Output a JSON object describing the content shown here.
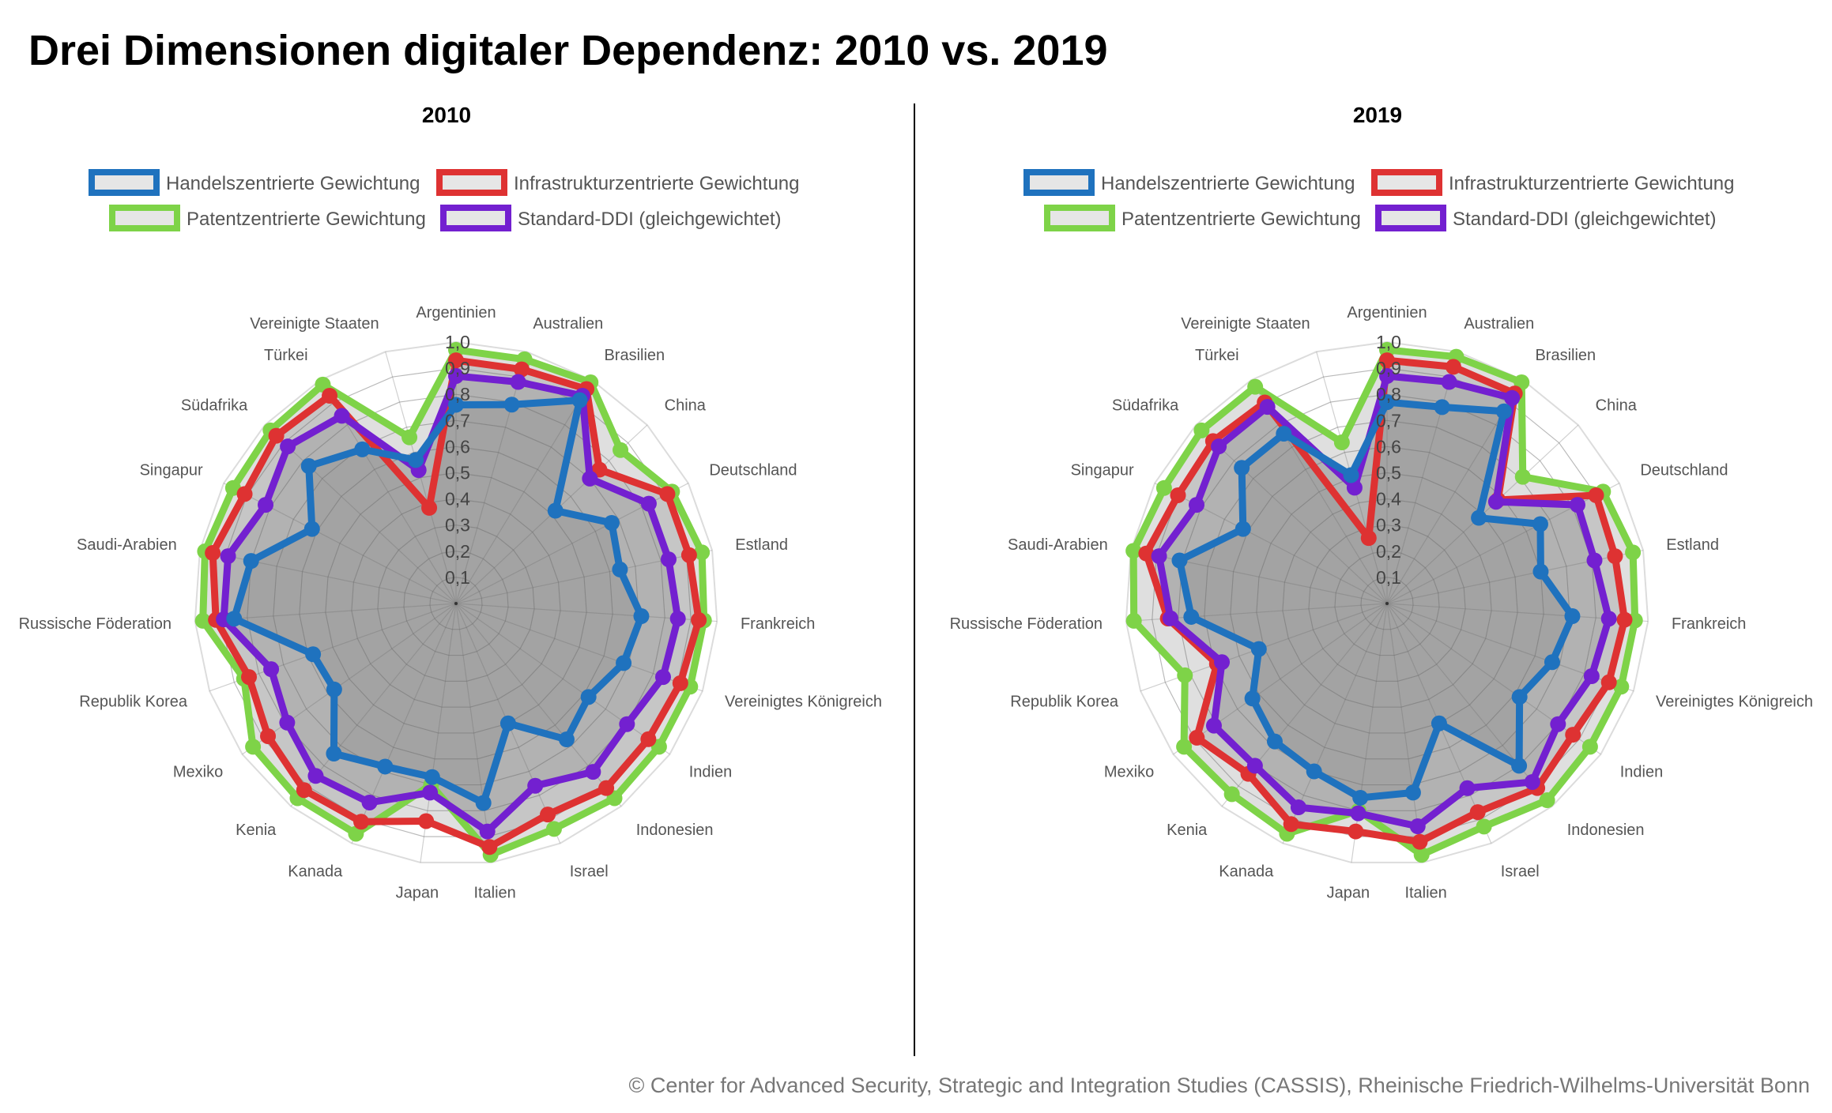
{
  "title": "Drei Dimensionen digitaler Dependenz: 2010 vs. 2019",
  "footer": "© Center for Advanced Security, Strategic and Integration Studies (CASSIS), Rheinische Friedrich-Wilhelms-Universität Bonn",
  "chart_data": [
    {
      "type": "radar",
      "title": "2010",
      "rlim": [
        0,
        1
      ],
      "radial_ticks": [
        "0,1",
        "0,2",
        "0,3",
        "0,4",
        "0,5",
        "0,6",
        "0,7",
        "0,8",
        "0,9",
        "1,0"
      ],
      "categories": [
        "Argentinien",
        "Australien",
        "Brasilien",
        "China",
        "Deutschland",
        "Estland",
        "Frankreich",
        "Vereinigtes Königreich",
        "Indien",
        "Indonesien",
        "Israel",
        "Italien",
        "Japan",
        "Kanada",
        "Kenia",
        "Mexiko",
        "Republik Korea",
        "Russische Föderation",
        "Saudi-Arabien",
        "Singapur",
        "Südafrika",
        "Türkei",
        "Vereinigte Staaten"
      ],
      "legend": "top",
      "series": [
        {
          "name": "Patentzentrierte Gewichtung",
          "color": "#7ed348",
          "values": [
            0.97,
            0.97,
            0.99,
            0.86,
            0.93,
            0.96,
            0.95,
            0.95,
            0.95,
            0.96,
            0.94,
            0.97,
            0.7,
            0.96,
            0.96,
            0.95,
            0.86,
            0.97,
            0.98,
            0.96,
            0.97,
            0.98,
            0.66
          ]
        },
        {
          "name": "Infrastrukturzentrierte Gewichtung",
          "color": "#de3232",
          "values": [
            0.93,
            0.93,
            0.96,
            0.75,
            0.91,
            0.91,
            0.93,
            0.91,
            0.9,
            0.91,
            0.88,
            0.94,
            0.84,
            0.91,
            0.92,
            0.88,
            0.84,
            0.92,
            0.95,
            0.91,
            0.94,
            0.93,
            0.38
          ]
        },
        {
          "name": "Standard-DDI (gleichgewichtet)",
          "color": "#7320d0",
          "values": [
            0.87,
            0.88,
            0.93,
            0.7,
            0.83,
            0.83,
            0.85,
            0.84,
            0.8,
            0.83,
            0.76,
            0.88,
            0.73,
            0.83,
            0.85,
            0.79,
            0.75,
            0.89,
            0.89,
            0.82,
            0.88,
            0.84,
            0.53
          ]
        },
        {
          "name": "Handelszentrierte Gewichtung",
          "color": "#1f72be",
          "values": [
            0.76,
            0.79,
            0.91,
            0.52,
            0.67,
            0.64,
            0.71,
            0.68,
            0.62,
            0.67,
            0.5,
            0.77,
            0.67,
            0.68,
            0.74,
            0.57,
            0.58,
            0.85,
            0.8,
            0.62,
            0.77,
            0.69,
            0.57
          ]
        }
      ]
    },
    {
      "type": "radar",
      "title": "2019",
      "rlim": [
        0,
        1
      ],
      "radial_ticks": [
        "0,1",
        "0,2",
        "0,3",
        "0,4",
        "0,5",
        "0,6",
        "0,7",
        "0,8",
        "0,9",
        "1,0"
      ],
      "categories": [
        "Argentinien",
        "Australien",
        "Brasilien",
        "China",
        "Deutschland",
        "Estland",
        "Frankreich",
        "Vereinigtes Königreich",
        "Indien",
        "Indonesien",
        "Israel",
        "Italien",
        "Japan",
        "Kanada",
        "Kenia",
        "Mexiko",
        "Republik Korea",
        "Russische Föderation",
        "Saudi-Arabien",
        "Singapur",
        "Südafrika",
        "Türkei",
        "Vereinigte Staaten"
      ],
      "legend": "top",
      "series": [
        {
          "name": "Patentzentrierte Gewichtung",
          "color": "#7ed348",
          "values": [
            0.97,
            0.98,
            0.99,
            0.71,
            0.93,
            0.96,
            0.95,
            0.95,
            0.95,
            0.97,
            0.93,
            0.97,
            0.8,
            0.96,
            0.94,
            0.95,
            0.82,
            0.97,
            0.99,
            0.96,
            0.97,
            0.97,
            0.64
          ]
        },
        {
          "name": "Infrastrukturzentrierte Gewichtung",
          "color": "#de3232",
          "values": [
            0.93,
            0.94,
            0.94,
            0.58,
            0.9,
            0.89,
            0.91,
            0.9,
            0.87,
            0.91,
            0.87,
            0.92,
            0.88,
            0.92,
            0.84,
            0.89,
            0.69,
            0.84,
            0.94,
            0.9,
            0.91,
            0.9,
            0.26
          ]
        },
        {
          "name": "Standard-DDI (gleichgewichtet)",
          "color": "#7320d0",
          "values": [
            0.87,
            0.88,
            0.92,
            0.57,
            0.82,
            0.81,
            0.85,
            0.83,
            0.8,
            0.88,
            0.77,
            0.86,
            0.81,
            0.85,
            0.8,
            0.81,
            0.67,
            0.83,
            0.89,
            0.82,
            0.88,
            0.88,
            0.46
          ]
        },
        {
          "name": "Handelszentrierte Gewichtung",
          "color": "#1f72be",
          "values": [
            0.77,
            0.78,
            0.86,
            0.48,
            0.66,
            0.6,
            0.71,
            0.67,
            0.62,
            0.8,
            0.5,
            0.73,
            0.75,
            0.7,
            0.68,
            0.63,
            0.52,
            0.75,
            0.81,
            0.62,
            0.76,
            0.76,
            0.51
          ]
        }
      ]
    }
  ],
  "legend_order": [
    "Handelszentrierte Gewichtung",
    "Infrastrukturzentrierte Gewichtung",
    "Patentzentrierte Gewichtung",
    "Standard-DDI (gleichgewichtet)"
  ]
}
